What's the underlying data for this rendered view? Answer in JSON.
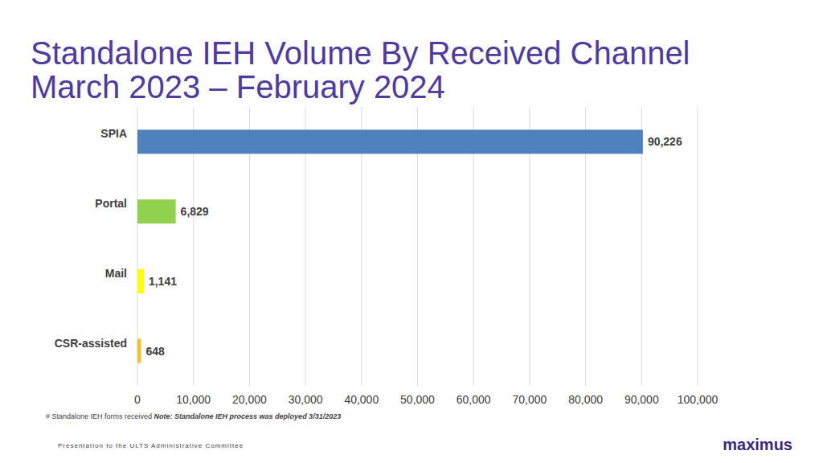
{
  "chart_data": {
    "type": "bar",
    "orientation": "horizontal",
    "title": "Standalone IEH Volume By Received Channel",
    "subtitle": "March 2023 – February 2024",
    "x_label": "# Standalone IEH forms received",
    "annotations": [
      "Note: Standalone IEH process was deployed 3/31/2023",
      "Presentation to the ULTS Administrative Committee",
      "maximus"
    ],
    "categories": [
      "SPIA",
      "Portal",
      "Mail",
      "CSR-assisted"
    ],
    "values": [
      90226,
      6829,
      1141,
      648
    ],
    "value_labels": [
      "90,226",
      "6,829",
      "1,141",
      "648"
    ],
    "colors": [
      "#4f81bd",
      "#92d050",
      "#ffff00",
      "#f2c12e"
    ],
    "xlim": [
      0,
      100000
    ],
    "xticks": [
      0,
      {
        "value": 10000,
        "label": "10,000"
      },
      {
        "value": 20000,
        "label": "20,000"
      },
      {
        "value": 30000,
        "label": "30,000"
      },
      {
        "value": 40000,
        "label": "40,000"
      },
      {
        "value": 50000,
        "label": "50,000"
      },
      {
        "value": 60000,
        "label": "60,000"
      },
      {
        "value": 70000,
        "label": "70,000"
      },
      {
        "value": 80000,
        "label": "80,000"
      },
      {
        "value": 90000,
        "label": "90,000"
      },
      {
        "value": 100000,
        "label": "100,000"
      }
    ],
    "grid": true,
    "data_labels": true
  }
}
